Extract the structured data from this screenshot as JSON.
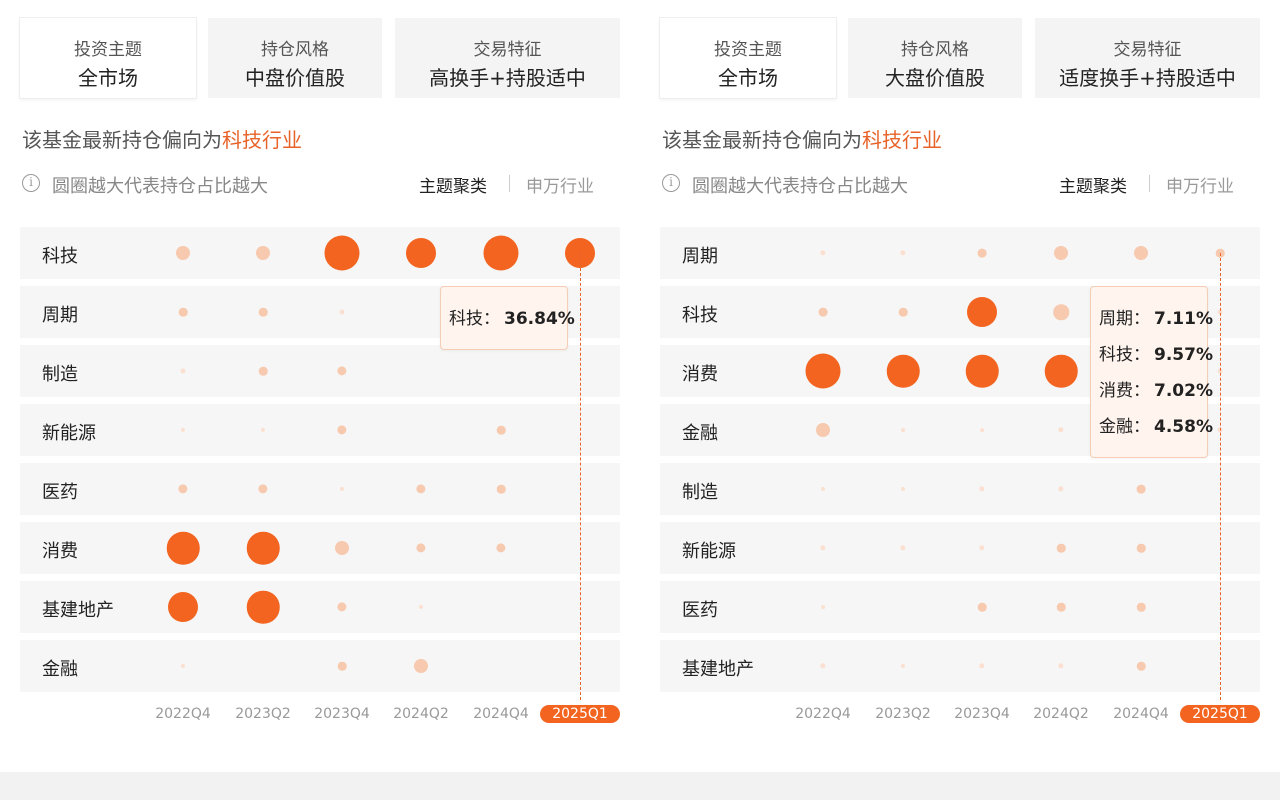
{
  "panels": [
    {
      "cards": [
        {
          "label": "投资主题",
          "value": "全市场",
          "active": true
        },
        {
          "label": "持仓风格",
          "value": "中盘价值股",
          "active": false
        },
        {
          "label": "交易特征",
          "value": "高换手+持股适中",
          "active": false
        }
      ],
      "headline_prefix": "该基金最新持仓偏向为",
      "headline_highlight": "科技行业",
      "info_text": "圆圈越大代表持仓占比越大",
      "toggle_theme": "主题聚类",
      "toggle_sw": "申万行业",
      "tooltip_lines": [
        {
          "label": "科技：",
          "value": "36.84%"
        }
      ],
      "chart_data": {
        "type": "bubble-matrix",
        "x": [
          "2022Q4",
          "2023Q2",
          "2023Q4",
          "2024Q2",
          "2024Q4",
          "2025Q1"
        ],
        "selected_x": "2025Q1",
        "rows": [
          {
            "name": "科技",
            "sizes": [
              2,
              2,
              5,
              4,
              5,
              4
            ]
          },
          {
            "name": "周期",
            "sizes": [
              1,
              1,
              0.5,
              0,
              0,
              0
            ]
          },
          {
            "name": "制造",
            "sizes": [
              0.5,
              1,
              1.5,
              0,
              0,
              0
            ]
          },
          {
            "name": "新能源",
            "sizes": [
              0.3,
              0.3,
              1.5,
              0,
              1,
              0
            ]
          },
          {
            "name": "医药",
            "sizes": [
              1.5,
              1.5,
              0.3,
              1.5,
              1,
              0
            ]
          },
          {
            "name": "消费",
            "sizes": [
              4.5,
              4.5,
              2,
              1.5,
              1.5,
              0
            ]
          },
          {
            "name": "基建地产",
            "sizes": [
              4,
              4.5,
              1.5,
              0.3,
              0,
              0
            ]
          },
          {
            "name": "金融",
            "sizes": [
              0.3,
              0,
              1,
              2,
              0,
              0
            ]
          }
        ],
        "highlight": {
          "x": "2025Q1",
          "row": "科技",
          "value": 36.84
        }
      }
    },
    {
      "cards": [
        {
          "label": "投资主题",
          "value": "全市场",
          "active": true
        },
        {
          "label": "持仓风格",
          "value": "大盘价值股",
          "active": false
        },
        {
          "label": "交易特征",
          "value": "适度换手+持股适中",
          "active": false
        }
      ],
      "headline_prefix": "该基金最新持仓偏向为",
      "headline_highlight": "科技行业",
      "info_text": "圆圈越大代表持仓占比越大",
      "toggle_theme": "主题聚类",
      "toggle_sw": "申万行业",
      "tooltip_lines": [
        {
          "label": "周期：",
          "value": "7.11%"
        },
        {
          "label": "科技：",
          "value": "9.57%"
        },
        {
          "label": "消费：",
          "value": "7.02%"
        },
        {
          "label": "金融：",
          "value": "4.58%"
        }
      ],
      "chart_data": {
        "type": "bubble-matrix",
        "x": [
          "2022Q4",
          "2023Q2",
          "2023Q4",
          "2024Q2",
          "2024Q4",
          "2025Q1"
        ],
        "selected_x": "2025Q1",
        "rows": [
          {
            "name": "周期",
            "sizes": [
              0.6,
              0.6,
              1.2,
              2,
              2,
              1
            ]
          },
          {
            "name": "科技",
            "sizes": [
              1.2,
              1,
              4,
              2.5,
              0,
              0.5
            ]
          },
          {
            "name": "消费",
            "sizes": [
              5,
              4.5,
              4.5,
              4.5,
              0,
              0.5
            ]
          },
          {
            "name": "金融",
            "sizes": [
              2,
              0.2,
              0.2,
              0.6,
              0,
              0.5
            ]
          },
          {
            "name": "制造",
            "sizes": [
              0.3,
              0.3,
              0.6,
              0.6,
              1.2,
              0
            ]
          },
          {
            "name": "新能源",
            "sizes": [
              0.6,
              0.6,
              0.6,
              1,
              1,
              0
            ]
          },
          {
            "name": "医药",
            "sizes": [
              0.2,
              0,
              1,
              1,
              1,
              0
            ]
          },
          {
            "name": "基建地产",
            "sizes": [
              0.6,
              0.3,
              0.6,
              0.6,
              1,
              0
            ]
          }
        ],
        "highlight": {
          "x": "2025Q1",
          "rows": [
            "周期",
            "科技",
            "消费",
            "金融"
          ],
          "values": [
            7.11,
            9.57,
            7.02,
            4.58
          ]
        }
      }
    }
  ],
  "colors": {
    "accent": "#f2641f",
    "accent_soft": "#f7c9ae",
    "accent_pale": "#fbe0d1",
    "row_bg": "#f6f6f6",
    "tooltip_bg": "#fff4ee"
  }
}
